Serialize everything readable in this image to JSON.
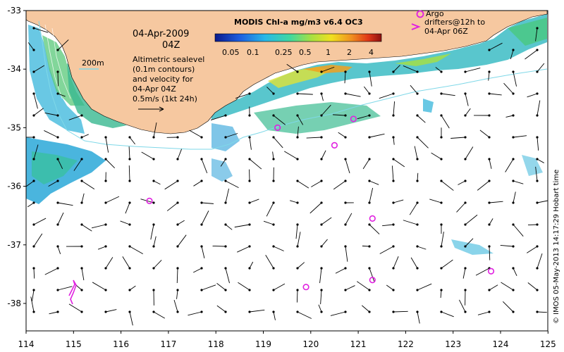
{
  "title_block": {
    "date": "04-Apr-2009",
    "time": "04Z",
    "scale_label": "200m",
    "desc_lines": [
      "Altimetric sealevel",
      "(0.1m contours)",
      "and velocity for",
      "04-Apr 04Z",
      "0.5m/s (1kt 24h)"
    ]
  },
  "colorbar": {
    "title": "MODIS Chl-a mg/m3 v6.4 OC3",
    "ticks": [
      "0.05",
      "0.1",
      "0.25",
      "0.5",
      "1",
      "2",
      "4"
    ]
  },
  "legend": {
    "lines": [
      "Argo",
      "drifters@12h to",
      "04-Apr 06Z"
    ]
  },
  "credit": "© IMOS 05-May-2013 14:17:29 Hobart time",
  "axes": {
    "x_ticks": [
      "114",
      "115",
      "116",
      "117",
      "118",
      "119",
      "120",
      "121",
      "122",
      "123",
      "124",
      "125"
    ],
    "y_ticks": [
      "-33",
      "-34",
      "-35",
      "-36",
      "-37",
      "-38"
    ]
  },
  "argo_floats": [
    {
      "lon": 119.3,
      "lat": -35.0
    },
    {
      "lon": 120.9,
      "lat": -34.85
    },
    {
      "lon": 120.5,
      "lat": -35.3
    },
    {
      "lon": 116.6,
      "lat": -36.25
    },
    {
      "lon": 121.3,
      "lat": -36.55
    },
    {
      "lon": 119.9,
      "lat": -37.72
    },
    {
      "lon": 121.3,
      "lat": -37.6
    },
    {
      "lon": 123.8,
      "lat": -37.45
    }
  ],
  "colors": {
    "land": "#f6c8a0",
    "arrow": "#000000",
    "argo": "#e020e0",
    "contour": "#7fd8e8"
  }
}
